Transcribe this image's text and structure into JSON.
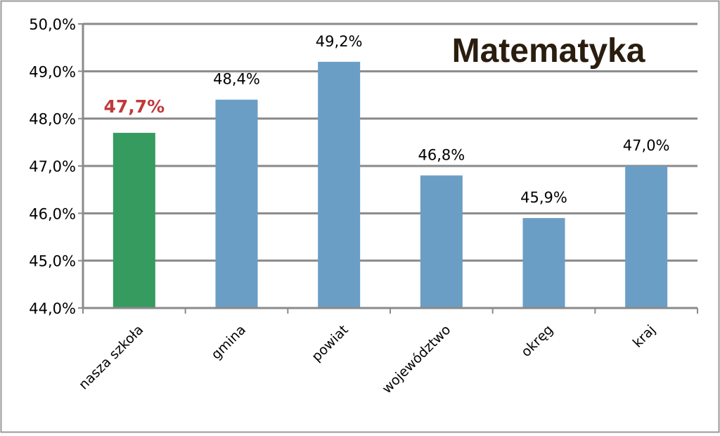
{
  "chart_data": {
    "type": "bar",
    "title": "Matematyka",
    "categories": [
      "nasza szkoła",
      "gmina",
      "powiat",
      "województwo",
      "okręg",
      "kraj"
    ],
    "values": [
      47.7,
      48.4,
      49.2,
      46.8,
      45.9,
      47.0
    ],
    "value_labels": [
      "47,7%",
      "48,4%",
      "49,2%",
      "46,8%",
      "45,9%",
      "47,0%"
    ],
    "highlight_index": 0,
    "ylim": [
      44,
      50
    ],
    "yticks": [
      44,
      45,
      46,
      47,
      48,
      49,
      50
    ],
    "ytick_labels": [
      "44,0%",
      "45,0%",
      "46,0%",
      "47,0%",
      "48,0%",
      "49,0%",
      "50,0%"
    ],
    "xlabel": "",
    "ylabel": "",
    "grid": true,
    "colors": {
      "bar": "#6a9ec5",
      "highlight_bar": "#359b5e",
      "highlight_label": "#c0393b",
      "grid": "#8a8a8a",
      "title": "#2b1d0e",
      "frame": "#9a9a9a"
    }
  }
}
